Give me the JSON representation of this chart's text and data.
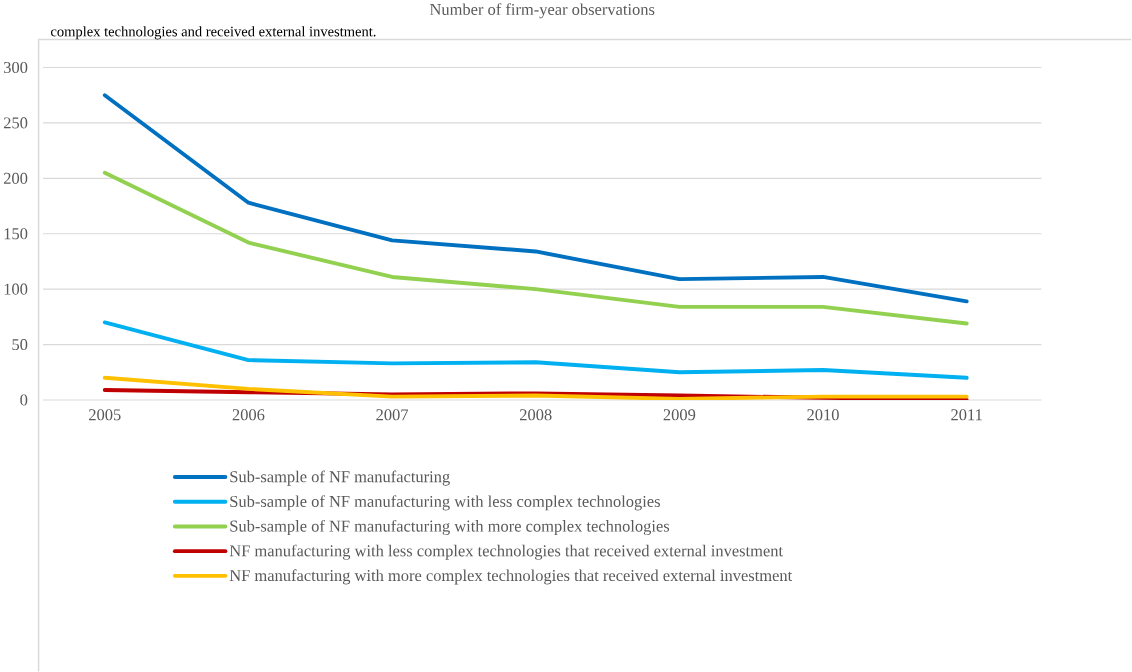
{
  "chart_data": {
    "type": "line",
    "title": "Number of firm-year observations",
    "annotations": [
      "complex technologies and received external investment."
    ],
    "categories": [
      "2005",
      "2006",
      "2007",
      "2008",
      "2009",
      "2010",
      "2011"
    ],
    "series": [
      {
        "name": "Sub-sample of NF manufacturing",
        "color": "#0070c0",
        "values": [
          275,
          178,
          144,
          134,
          109,
          111,
          89
        ]
      },
      {
        "name": "Sub-sample of NF manufacturing with less complex technologies",
        "color": "#00b0f0",
        "values": [
          70,
          36,
          33,
          34,
          25,
          27,
          20
        ]
      },
      {
        "name": "Sub-sample of NF manufacturing with more complex technologies",
        "color": "#92d050",
        "values": [
          205,
          142,
          111,
          100,
          84,
          84,
          69
        ]
      },
      {
        "name": "NF manufacturing with less complex technologies that received external investment",
        "color": "#c00000",
        "values": [
          9,
          7,
          5,
          6,
          4,
          2,
          0
        ]
      },
      {
        "name": "NF manufacturing with more complex technologies that received external investment",
        "color": "#ffc000",
        "values": [
          20,
          10,
          3,
          4,
          1,
          3,
          3
        ]
      }
    ],
    "ylim": [
      0,
      300
    ],
    "yticks": [
      0,
      50,
      100,
      150,
      200,
      250,
      300
    ],
    "grid": "y",
    "legend": "bottom",
    "marker": "none",
    "line_style": "solid"
  }
}
